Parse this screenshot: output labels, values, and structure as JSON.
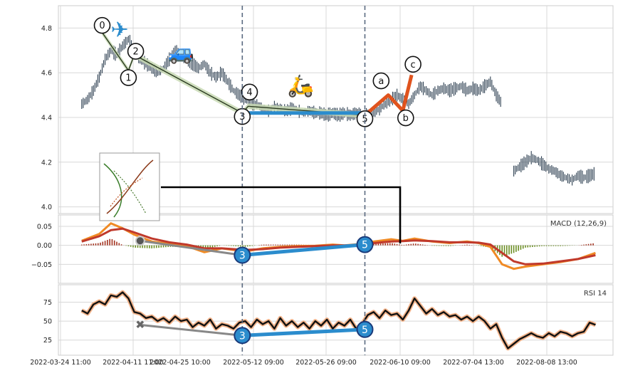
{
  "chart_data": {
    "type": "line",
    "grid": true,
    "x_tick_labels": [
      "2022-03-24 11:00",
      "2022-04-11 11:00",
      "2022-04-25 10:00",
      "2022-05-12 09:00",
      "2022-05-26 09:00",
      "2022-06-10 09:00",
      "2022-07-04 13:00",
      "2022-08-08 13:00"
    ],
    "price_panel": {
      "type": "bar",
      "ylim": [
        3.97,
        4.9
      ],
      "y_ticks": [
        "4.8",
        "4.6",
        "4.4",
        "4.2",
        "4.0"
      ],
      "y_tick_values": [
        4.8,
        4.6,
        4.4,
        4.2,
        4.0
      ],
      "series": [
        {
          "values": [
            [
              0,
              4.46
            ],
            [
              2,
              4.48
            ],
            [
              4,
              4.52
            ],
            [
              6,
              4.58
            ],
            [
              8,
              4.66
            ],
            [
              10,
              4.7
            ],
            [
              12,
              4.68
            ],
            [
              14,
              4.72
            ],
            [
              16,
              4.75
            ],
            [
              18,
              4.7
            ],
            [
              20,
              4.66
            ],
            [
              22,
              4.64
            ],
            [
              24,
              4.62
            ],
            [
              26,
              4.6
            ],
            [
              28,
              4.62
            ],
            [
              30,
              4.66
            ],
            [
              32,
              4.7
            ],
            [
              34,
              4.68
            ],
            [
              36,
              4.66
            ],
            [
              38,
              4.64
            ],
            [
              40,
              4.62
            ],
            [
              42,
              4.64
            ],
            [
              44,
              4.6
            ],
            [
              46,
              4.58
            ],
            [
              48,
              4.6
            ],
            [
              50,
              4.56
            ],
            [
              52,
              4.52
            ],
            [
              54,
              4.5
            ],
            [
              56,
              4.48
            ],
            [
              58,
              4.46
            ],
            [
              60,
              4.46
            ],
            [
              62,
              4.44
            ],
            [
              64,
              4.43
            ],
            [
              66,
              4.45
            ],
            [
              68,
              4.44
            ],
            [
              70,
              4.43
            ],
            [
              72,
              4.44
            ],
            [
              74,
              4.43
            ],
            [
              76,
              4.42
            ],
            [
              78,
              4.43
            ],
            [
              80,
              4.42
            ],
            [
              82,
              4.42
            ],
            [
              84,
              4.41
            ],
            [
              86,
              4.42
            ],
            [
              88,
              4.41
            ],
            [
              90,
              4.42
            ],
            [
              92,
              4.41
            ],
            [
              94,
              4.42
            ],
            [
              96,
              4.41
            ],
            [
              98,
              4.41
            ],
            [
              100,
              4.42
            ],
            [
              102,
              4.44
            ],
            [
              104,
              4.46
            ],
            [
              106,
              4.48
            ],
            [
              108,
              4.5
            ],
            [
              110,
              4.48
            ],
            [
              112,
              4.46
            ],
            [
              114,
              4.5
            ],
            [
              116,
              4.54
            ],
            [
              118,
              4.52
            ],
            [
              120,
              4.5
            ],
            [
              122,
              4.52
            ],
            [
              124,
              4.53
            ],
            [
              126,
              4.52
            ],
            [
              128,
              4.53
            ],
            [
              130,
              4.54
            ],
            [
              132,
              4.52
            ],
            [
              134,
              4.53
            ],
            [
              136,
              4.52
            ],
            [
              138,
              4.54
            ],
            [
              140,
              4.56
            ],
            [
              142,
              4.5
            ],
            [
              144,
              4.46
            ]
          ]
        },
        {
          "values": [
            [
              148,
              4.16
            ],
            [
              150,
              4.18
            ],
            [
              152,
              4.2
            ],
            [
              154,
              4.22
            ],
            [
              156,
              4.21
            ],
            [
              158,
              4.19
            ],
            [
              160,
              4.17
            ],
            [
              162,
              4.16
            ],
            [
              164,
              4.14
            ],
            [
              166,
              4.13
            ],
            [
              168,
              4.12
            ],
            [
              170,
              4.14
            ],
            [
              172,
              4.13
            ],
            [
              174,
              4.14
            ],
            [
              176,
              4.15
            ]
          ]
        }
      ],
      "x_range": [
        -8,
        182
      ],
      "wave_points": [
        {
          "label": "0",
          "x": 7,
          "y": 4.78
        },
        {
          "label": "1",
          "x": 16,
          "y": 4.61
        },
        {
          "label": "2",
          "x": 18,
          "y": 4.68
        },
        {
          "label": "3",
          "x": 55,
          "y": 4.42
        },
        {
          "label": "4",
          "x": 57,
          "y": 4.45
        },
        {
          "label": "5",
          "x": 97,
          "y": 4.41
        },
        {
          "label": "a",
          "x": 105,
          "y": 4.5
        },
        {
          "label": "b",
          "x": 110,
          "y": 4.43
        },
        {
          "label": "c",
          "x": 113,
          "y": 4.59
        }
      ],
      "divergence_line": {
        "from": "3",
        "to": "5"
      },
      "icons": [
        "airplane-icon",
        "car-icon",
        "scooter-icon"
      ],
      "thumbnail": "strategy-thumbnail"
    },
    "macd_panel": {
      "label": "MACD (12,26,9)",
      "ylim": [
        -0.1,
        0.08
      ],
      "y_ticks": [
        "0.05",
        "0.00",
        "−0.05"
      ],
      "y_tick_values": [
        0.05,
        0.0,
        -0.05
      ],
      "macd": [
        [
          0,
          0.012
        ],
        [
          6,
          0.03
        ],
        [
          10,
          0.058
        ],
        [
          14,
          0.045
        ],
        [
          18,
          0.028
        ],
        [
          24,
          0.01
        ],
        [
          30,
          0.004
        ],
        [
          36,
          -0.002
        ],
        [
          42,
          -0.018
        ],
        [
          48,
          -0.008
        ],
        [
          52,
          -0.012
        ],
        [
          56,
          -0.016
        ],
        [
          62,
          -0.008
        ],
        [
          68,
          -0.004
        ],
        [
          74,
          -0.002
        ],
        [
          80,
          -0.001
        ],
        [
          86,
          0.002
        ],
        [
          90,
          0.0
        ],
        [
          96,
          0.004
        ],
        [
          100,
          0.01
        ],
        [
          106,
          0.016
        ],
        [
          110,
          0.012
        ],
        [
          114,
          0.018
        ],
        [
          120,
          0.01
        ],
        [
          126,
          0.006
        ],
        [
          132,
          0.01
        ],
        [
          136,
          0.006
        ],
        [
          140,
          -0.004
        ],
        [
          144,
          -0.05
        ],
        [
          148,
          -0.062
        ],
        [
          152,
          -0.056
        ],
        [
          158,
          -0.05
        ],
        [
          164,
          -0.044
        ],
        [
          170,
          -0.036
        ],
        [
          176,
          -0.02
        ]
      ],
      "signal": [
        [
          0,
          0.01
        ],
        [
          6,
          0.024
        ],
        [
          10,
          0.04
        ],
        [
          14,
          0.044
        ],
        [
          18,
          0.034
        ],
        [
          24,
          0.018
        ],
        [
          30,
          0.008
        ],
        [
          36,
          0.002
        ],
        [
          42,
          -0.008
        ],
        [
          48,
          -0.008
        ],
        [
          52,
          -0.01
        ],
        [
          56,
          -0.012
        ],
        [
          62,
          -0.01
        ],
        [
          68,
          -0.006
        ],
        [
          74,
          -0.004
        ],
        [
          80,
          -0.002
        ],
        [
          86,
          0.0
        ],
        [
          90,
          0.0
        ],
        [
          96,
          0.002
        ],
        [
          100,
          0.006
        ],
        [
          106,
          0.01
        ],
        [
          110,
          0.011
        ],
        [
          114,
          0.013
        ],
        [
          120,
          0.011
        ],
        [
          126,
          0.008
        ],
        [
          132,
          0.008
        ],
        [
          136,
          0.007
        ],
        [
          140,
          0.002
        ],
        [
          144,
          -0.02
        ],
        [
          148,
          -0.042
        ],
        [
          152,
          -0.05
        ],
        [
          158,
          -0.048
        ],
        [
          164,
          -0.042
        ],
        [
          170,
          -0.036
        ],
        [
          176,
          -0.026
        ]
      ],
      "divergence": [
        {
          "label": "3",
          "x": 55,
          "y": -0.026
        },
        {
          "label": "5",
          "x": 97,
          "y": 0.002
        }
      ],
      "grey_line": {
        "from": [
          20,
          0.012
        ],
        "to": [
          55,
          -0.026
        ]
      }
    },
    "rsi_panel": {
      "label": "RSI 14",
      "ylim": [
        5,
        98
      ],
      "y_ticks": [
        "75",
        "50",
        "25"
      ],
      "y_tick_values": [
        75,
        50,
        25
      ],
      "rsi": [
        [
          0,
          64
        ],
        [
          2,
          60
        ],
        [
          4,
          72
        ],
        [
          6,
          76
        ],
        [
          8,
          72
        ],
        [
          10,
          84
        ],
        [
          12,
          82
        ],
        [
          14,
          88
        ],
        [
          16,
          80
        ],
        [
          18,
          62
        ],
        [
          20,
          60
        ],
        [
          22,
          54
        ],
        [
          24,
          56
        ],
        [
          26,
          50
        ],
        [
          28,
          54
        ],
        [
          30,
          48
        ],
        [
          32,
          56
        ],
        [
          34,
          50
        ],
        [
          36,
          52
        ],
        [
          38,
          42
        ],
        [
          40,
          48
        ],
        [
          42,
          44
        ],
        [
          44,
          52
        ],
        [
          46,
          40
        ],
        [
          48,
          46
        ],
        [
          50,
          44
        ],
        [
          52,
          40
        ],
        [
          54,
          48
        ],
        [
          56,
          50
        ],
        [
          58,
          42
        ],
        [
          60,
          52
        ],
        [
          62,
          46
        ],
        [
          64,
          50
        ],
        [
          66,
          40
        ],
        [
          68,
          54
        ],
        [
          70,
          44
        ],
        [
          72,
          50
        ],
        [
          74,
          42
        ],
        [
          76,
          48
        ],
        [
          78,
          40
        ],
        [
          80,
          50
        ],
        [
          82,
          44
        ],
        [
          84,
          52
        ],
        [
          86,
          40
        ],
        [
          88,
          48
        ],
        [
          90,
          44
        ],
        [
          92,
          52
        ],
        [
          94,
          40
        ],
        [
          96,
          46
        ],
        [
          98,
          58
        ],
        [
          100,
          62
        ],
        [
          102,
          54
        ],
        [
          104,
          64
        ],
        [
          106,
          58
        ],
        [
          108,
          60
        ],
        [
          110,
          52
        ],
        [
          112,
          64
        ],
        [
          114,
          80
        ],
        [
          116,
          70
        ],
        [
          118,
          60
        ],
        [
          120,
          66
        ],
        [
          122,
          58
        ],
        [
          124,
          62
        ],
        [
          126,
          56
        ],
        [
          128,
          58
        ],
        [
          130,
          52
        ],
        [
          132,
          56
        ],
        [
          134,
          50
        ],
        [
          136,
          56
        ],
        [
          138,
          50
        ],
        [
          140,
          40
        ],
        [
          142,
          46
        ],
        [
          144,
          28
        ],
        [
          146,
          14
        ],
        [
          148,
          20
        ],
        [
          150,
          26
        ],
        [
          152,
          30
        ],
        [
          154,
          34
        ],
        [
          156,
          30
        ],
        [
          158,
          28
        ],
        [
          160,
          34
        ],
        [
          162,
          30
        ],
        [
          164,
          36
        ],
        [
          166,
          34
        ],
        [
          168,
          30
        ],
        [
          170,
          34
        ],
        [
          172,
          36
        ],
        [
          174,
          48
        ],
        [
          176,
          45
        ]
      ],
      "divergence": [
        {
          "label": "3",
          "x": 55,
          "y": 31
        },
        {
          "label": "5",
          "x": 97,
          "y": 39
        }
      ],
      "grey_line": {
        "from": [
          20,
          45
        ],
        "to": [
          55,
          31
        ]
      }
    },
    "colors": {
      "price_bars": "#2c3e50",
      "wave_fill": "#c8d9b4",
      "wave_line": "#2a3a20",
      "correction": "#e0531d",
      "divergence": "#2b8ccd",
      "guide_line": "#5a6a80",
      "macd_line": "#f08a24",
      "signal_line": "#c0392b",
      "hist_pos": "#a3321f",
      "hist_neg": "#6b8e23",
      "rsi_line": "#111111",
      "rsi_glow": "#f2b38a",
      "grid": "#d8d8d8"
    }
  }
}
